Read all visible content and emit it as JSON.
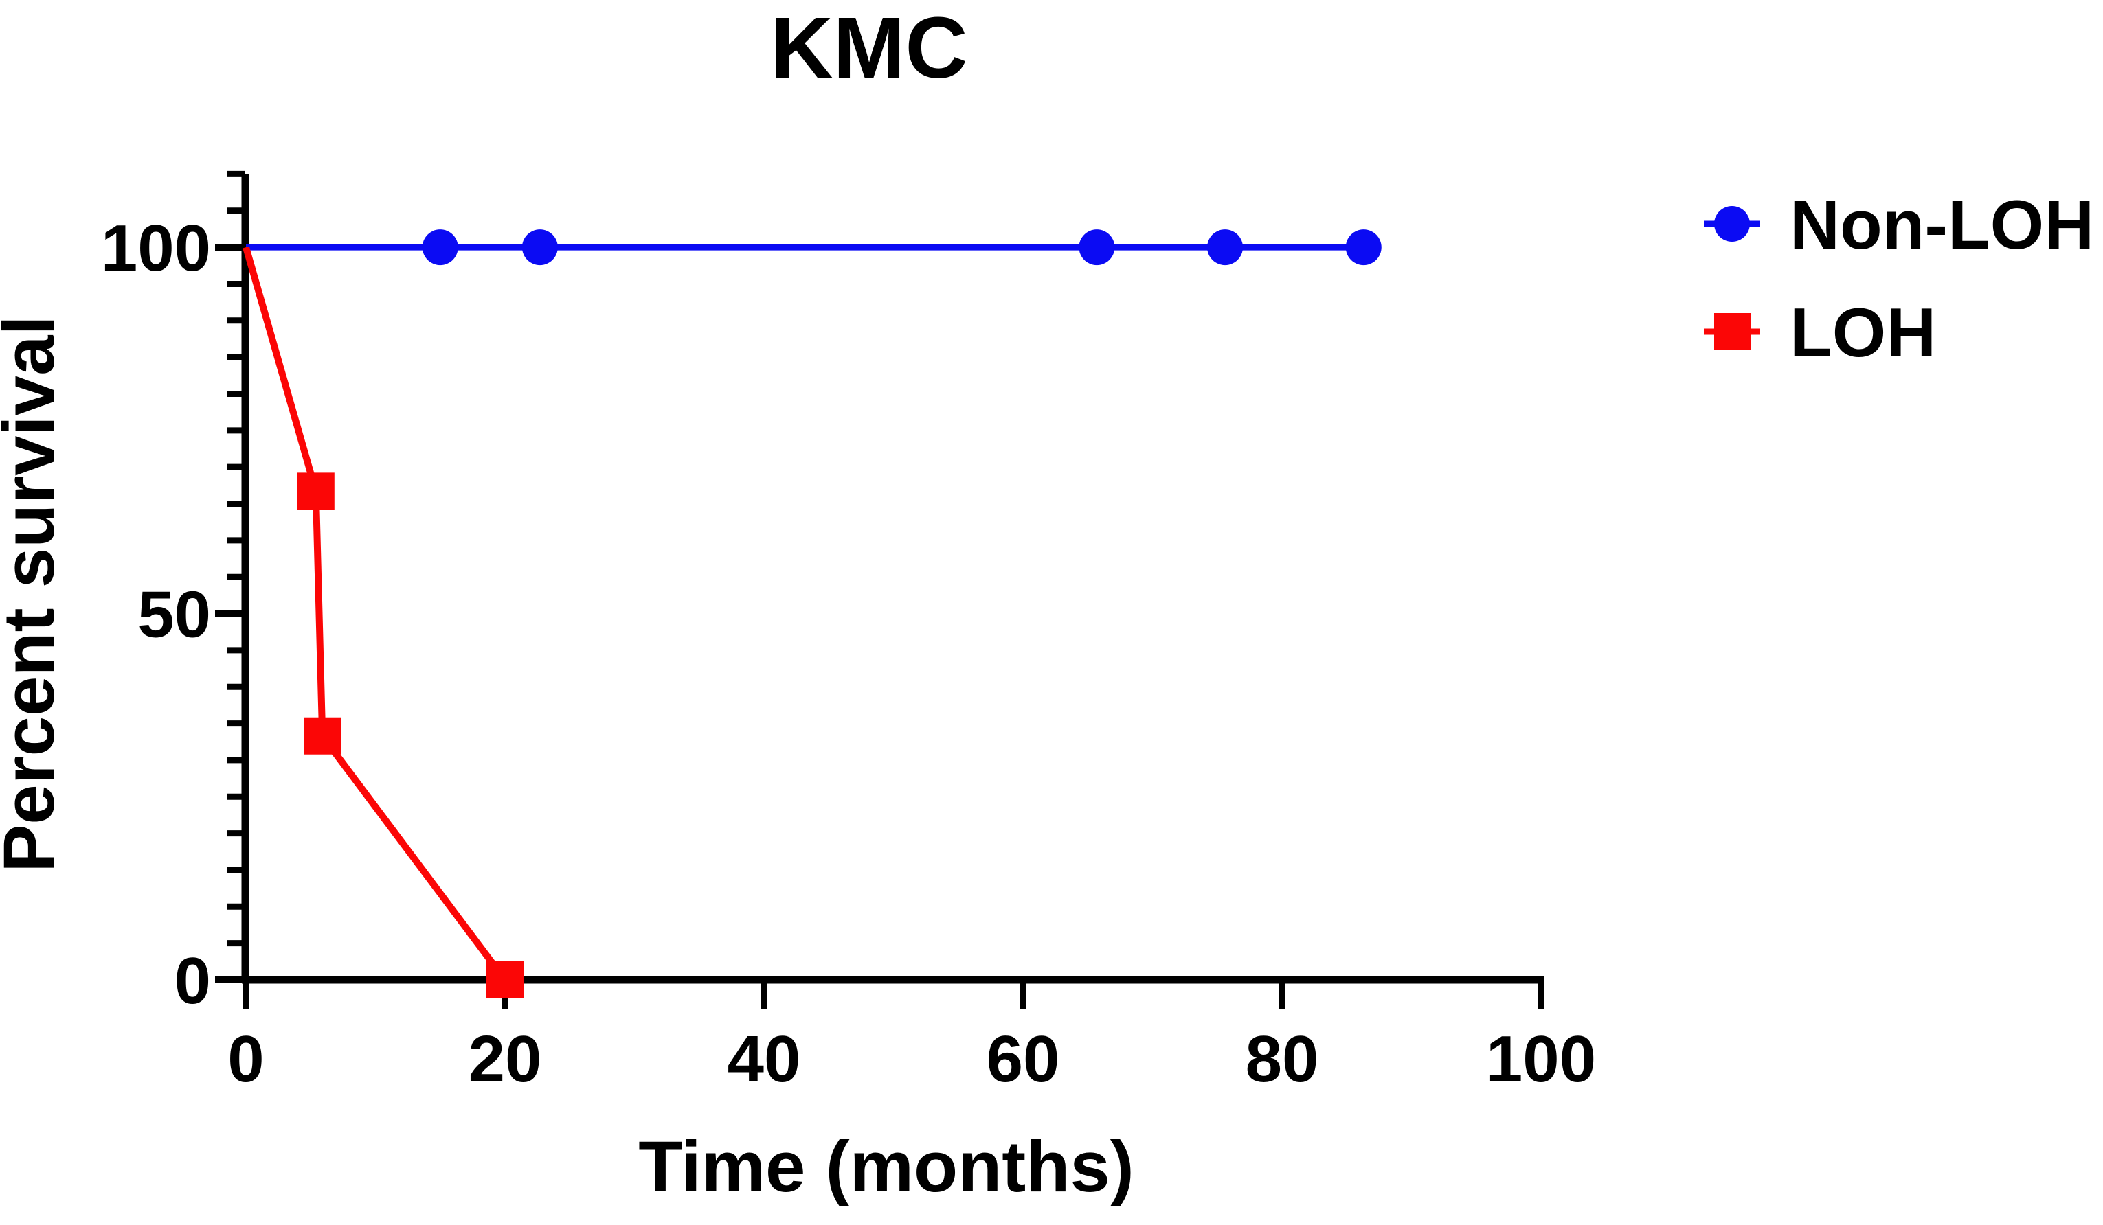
{
  "chart": {
    "title": "KMC",
    "xlabel": "Time (months)",
    "ylabel": "Percent survival",
    "colors": {
      "non_loh_blue": "#0b0bf3",
      "loh_red": "#fb0606",
      "axis_black": "#000000"
    },
    "legend": [
      {
        "name": "Non-LOH",
        "color": "#0b0bf3",
        "marker": "circle"
      },
      {
        "name": "LOH",
        "color": "#fb0606",
        "marker": "square"
      }
    ]
  },
  "chart_data": {
    "type": "line",
    "title": "KMC",
    "xlabel": "Time (months)",
    "ylabel": "Percent survival",
    "xlim": [
      0,
      100
    ],
    "ylim": [
      0,
      110
    ],
    "x_ticks": [
      0,
      20,
      40,
      60,
      80,
      100
    ],
    "y_ticks": [
      0,
      50,
      100
    ],
    "y_minor_tick_step": 5,
    "grid": false,
    "legend_position": "right",
    "series": [
      {
        "name": "Non-LOH",
        "color": "#0b0bf3",
        "marker": "circle",
        "points": [
          [
            0,
            100
          ],
          [
            86.3,
            100
          ]
        ],
        "marker_points": [
          [
            15,
            100
          ],
          [
            22.7,
            100
          ],
          [
            65.7,
            100
          ],
          [
            75.6,
            100
          ],
          [
            86.3,
            100
          ]
        ]
      },
      {
        "name": "LOH",
        "color": "#fb0606",
        "marker": "square",
        "points": [
          [
            0,
            100
          ],
          [
            5.4,
            66.7
          ],
          [
            5.9,
            33.3
          ],
          [
            20,
            0
          ]
        ],
        "marker_points": [
          [
            5.4,
            66.7
          ],
          [
            5.9,
            33.3
          ],
          [
            20,
            0
          ]
        ]
      }
    ]
  }
}
